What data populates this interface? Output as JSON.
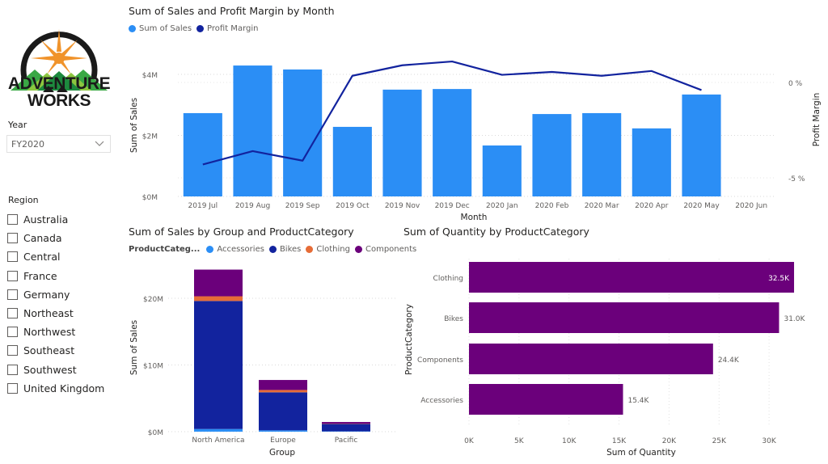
{
  "brand": {
    "name_line1": "ADVENTURE",
    "name_line2": "WORKS"
  },
  "filters": {
    "year": {
      "label": "Year",
      "selected": "FY2020"
    },
    "region": {
      "label": "Region",
      "options": [
        "Australia",
        "Canada",
        "Central",
        "France",
        "Germany",
        "Northeast",
        "Northwest",
        "Southeast",
        "Southwest",
        "United Kingdom"
      ]
    }
  },
  "colors": {
    "sales_bar": "#2b8ef5",
    "profit_line": "#12239e",
    "accessories": "#2b8ef5",
    "bikes": "#12239e",
    "clothing": "#e66c37",
    "components": "#6b007b",
    "quantity_bar": "#6b007b"
  },
  "chart_data": [
    {
      "type": "bar",
      "combo": "bar+line",
      "title": "Sum of Sales and Profit Margin by Month",
      "legend": [
        "Sum of Sales",
        "Profit Margin"
      ],
      "legend_position": "top-left",
      "xlabel": "Month",
      "ylabel": "Sum of Sales",
      "y2label": "Profit Margin",
      "categories": [
        "2019 Jul",
        "2019 Aug",
        "2019 Sep",
        "2019 Oct",
        "2019 Nov",
        "2019 Dec",
        "2020 Jan",
        "2020 Feb",
        "2020 Mar",
        "2020 Apr",
        "2020 May",
        "2020 Jun"
      ],
      "series": [
        {
          "name": "Sum of Sales",
          "type": "bar",
          "axis": "left",
          "unit": "$M",
          "values": [
            2.73,
            4.29,
            4.16,
            2.28,
            3.5,
            3.52,
            1.67,
            2.7,
            2.73,
            2.23,
            3.34,
            null
          ]
        },
        {
          "name": "Profit Margin",
          "type": "line",
          "axis": "right",
          "unit": "%",
          "values": [
            -4.3,
            -3.6,
            -4.1,
            0.35,
            0.9,
            1.1,
            0.4,
            0.55,
            0.35,
            0.6,
            -0.4,
            null
          ]
        }
      ],
      "yticks": [
        "$0M",
        "$2M",
        "$4M"
      ],
      "ytick_values": [
        0,
        2,
        4
      ],
      "ylim": [
        0,
        4.8
      ],
      "y2ticks": [
        "0 %",
        "-5 %"
      ],
      "y2tick_values": [
        0,
        -5
      ],
      "y2lim": [
        -6,
        1.5
      ],
      "grid": true
    },
    {
      "type": "bar",
      "stacked": true,
      "title": "Sum of Sales by Group and ProductCategory",
      "legend_title": "ProductCateg...",
      "legend": [
        "Accessories",
        "Bikes",
        "Clothing",
        "Components"
      ],
      "legend_position": "top-left",
      "xlabel": "Group",
      "ylabel": "Sum of Sales",
      "categories": [
        "North America",
        "Europe",
        "Pacific"
      ],
      "series": [
        {
          "name": "Accessories",
          "values": [
            0.4,
            0.2,
            0.05
          ]
        },
        {
          "name": "Bikes",
          "values": [
            19.2,
            5.7,
            1.1
          ]
        },
        {
          "name": "Clothing",
          "values": [
            0.7,
            0.35,
            0.05
          ]
        },
        {
          "name": "Components",
          "values": [
            4.0,
            1.5,
            0.25
          ]
        }
      ],
      "yticks": [
        "$0M",
        "$10M",
        "$20M"
      ],
      "ytick_values": [
        0,
        10,
        20
      ],
      "ylim": [
        0,
        25
      ],
      "grid": true
    },
    {
      "type": "bar",
      "orientation": "horizontal",
      "title": "Sum of Quantity by ProductCategory",
      "xlabel": "Sum of Quantity",
      "ylabel": "ProductCategory",
      "categories": [
        "Clothing",
        "Bikes",
        "Components",
        "Accessories"
      ],
      "values": [
        32.5,
        31.0,
        24.4,
        15.4
      ],
      "data_labels": [
        "32.5K",
        "31.0K",
        "24.4K",
        "15.4K"
      ],
      "xticks": [
        "0K",
        "5K",
        "10K",
        "15K",
        "20K",
        "25K",
        "30K"
      ],
      "xtick_values": [
        0,
        5,
        10,
        15,
        20,
        25,
        30
      ],
      "xlim": [
        0,
        33.5
      ],
      "grid": true
    }
  ]
}
